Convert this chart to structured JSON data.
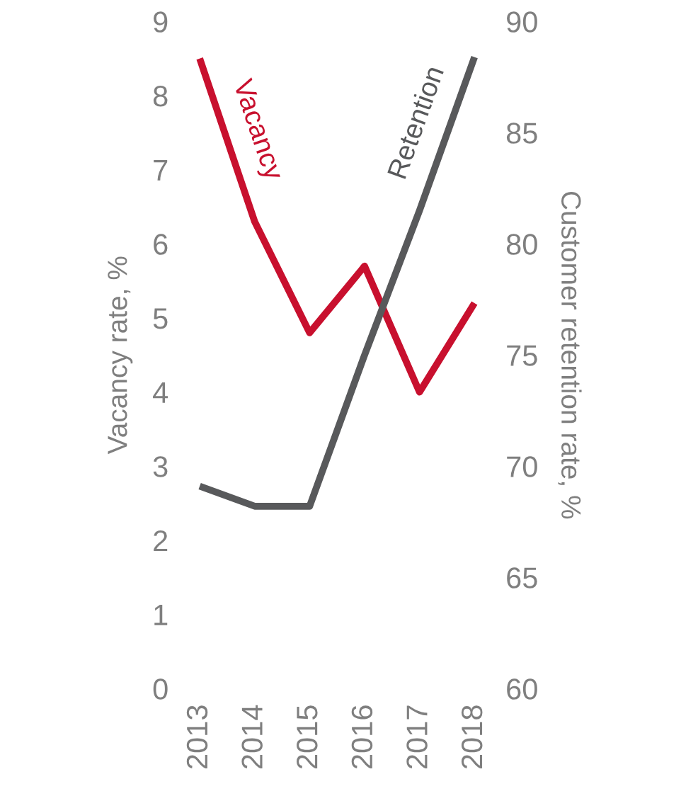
{
  "chart_data": {
    "type": "line",
    "categories": [
      "2013",
      "2014",
      "2015",
      "2016",
      "2017",
      "2018"
    ],
    "series": [
      {
        "name": "Vacancy",
        "color": "#c8102e",
        "values": [
          8.5,
          6.3,
          4.8,
          5.7,
          4.0,
          5.2
        ]
      },
      {
        "name": "Retention",
        "color": "#58595b",
        "axis": "y2",
        "values": [
          69.1,
          68.2,
          68.2,
          75.0,
          81.5,
          88.4
        ]
      }
    ],
    "ylabel": "Vacancy rate, %",
    "y2label": "Customer retention rate, %",
    "ylim": [
      0,
      9
    ],
    "yticks": [
      0,
      1,
      2,
      3,
      4,
      5,
      6,
      7,
      8,
      9
    ],
    "y2lim": [
      60,
      90
    ],
    "y2ticks": [
      60,
      65,
      70,
      75,
      80,
      85,
      90
    ],
    "grid": false,
    "legend": false,
    "marker": "none",
    "line_style": "solid"
  }
}
